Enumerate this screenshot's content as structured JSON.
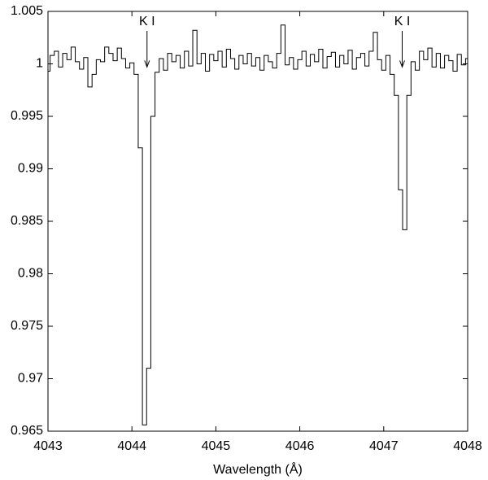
{
  "chart_data": {
    "type": "line",
    "drawstyle": "steps-mid",
    "xlabel": "Wavelength (Å)",
    "xlim": [
      4043,
      4048
    ],
    "ylim": [
      0.965,
      1.005
    ],
    "xticks": [
      4043,
      4044,
      4045,
      4046,
      4047,
      4048
    ],
    "yticks": [
      0.965,
      0.97,
      0.975,
      0.98,
      0.985,
      0.99,
      0.995,
      1,
      1.005
    ],
    "annotations": [
      {
        "text": "K I",
        "x": 4044.18,
        "y": 0.9997
      },
      {
        "text": "K I",
        "x": 4047.22,
        "y": 0.9997
      }
    ],
    "series": [
      {
        "color": "#000000",
        "x": [
          4043.0,
          4043.05,
          4043.1,
          4043.15,
          4043.2,
          4043.25,
          4043.3,
          4043.35,
          4043.4,
          4043.45,
          4043.5,
          4043.55,
          4043.6,
          4043.65,
          4043.7,
          4043.75,
          4043.8,
          4043.85,
          4043.9,
          4043.95,
          4044.0,
          4044.05,
          4044.1,
          4044.15,
          4044.2,
          4044.25,
          4044.3,
          4044.35,
          4044.4,
          4044.45,
          4044.5,
          4044.55,
          4044.6,
          4044.65,
          4044.7,
          4044.75,
          4044.8,
          4044.85,
          4044.9,
          4044.95,
          4045.0,
          4045.05,
          4045.1,
          4045.15,
          4045.2,
          4045.25,
          4045.3,
          4045.35,
          4045.4,
          4045.45,
          4045.5,
          4045.55,
          4045.6,
          4045.65,
          4045.7,
          4045.75,
          4045.8,
          4045.85,
          4045.9,
          4045.95,
          4046.0,
          4046.05,
          4046.1,
          4046.15,
          4046.2,
          4046.25,
          4046.3,
          4046.35,
          4046.4,
          4046.45,
          4046.5,
          4046.55,
          4046.6,
          4046.65,
          4046.7,
          4046.75,
          4046.8,
          4046.85,
          4046.9,
          4046.95,
          4047.0,
          4047.05,
          4047.1,
          4047.15,
          4047.2,
          4047.25,
          4047.3,
          4047.35,
          4047.4,
          4047.45,
          4047.5,
          4047.55,
          4047.6,
          4047.65,
          4047.7,
          4047.75,
          4047.8,
          4047.85,
          4047.9,
          4047.95,
          4048.0
        ],
        "values": [
          0.9993,
          1.0008,
          1.0012,
          0.9997,
          1.001,
          1.0004,
          1.0016,
          1.0002,
          0.9995,
          1.0006,
          0.9978,
          0.999,
          1.0004,
          1.0002,
          1.0016,
          1.001,
          1.0003,
          1.0015,
          1.0005,
          0.9996,
          1.0001,
          0.999,
          0.992,
          0.9656,
          0.971,
          0.995,
          0.9992,
          1.0005,
          0.9994,
          1.001,
          1.0002,
          1.0008,
          0.9996,
          1.0012,
          0.9998,
          1.0032,
          1.0,
          1.001,
          0.9993,
          1.0009,
          1.0003,
          1.0012,
          0.9997,
          1.0014,
          1.0005,
          0.9995,
          1.0008,
          1.0,
          1.001,
          0.9998,
          1.0006,
          0.9994,
          1.0008,
          1.0002,
          0.9996,
          1.001,
          1.0037,
          0.9999,
          1.0006,
          0.9995,
          1.0004,
          1.0012,
          0.9998,
          1.0009,
          1.0002,
          1.0014,
          0.9996,
          1.0007,
          1.0011,
          0.9997,
          1.0008,
          1.0,
          1.0013,
          0.9995,
          1.0006,
          1.001,
          0.9998,
          1.0012,
          1.003,
          1.0004,
          0.9994,
          1.0008,
          0.999,
          0.997,
          0.988,
          0.9842,
          0.997,
          1.0002,
          0.9994,
          1.0012,
          1.0004,
          1.0015,
          0.9997,
          1.001,
          0.9996,
          1.0008,
          1.0003,
          0.9993,
          1.0009,
          0.9999,
          1.0005
        ]
      }
    ]
  }
}
